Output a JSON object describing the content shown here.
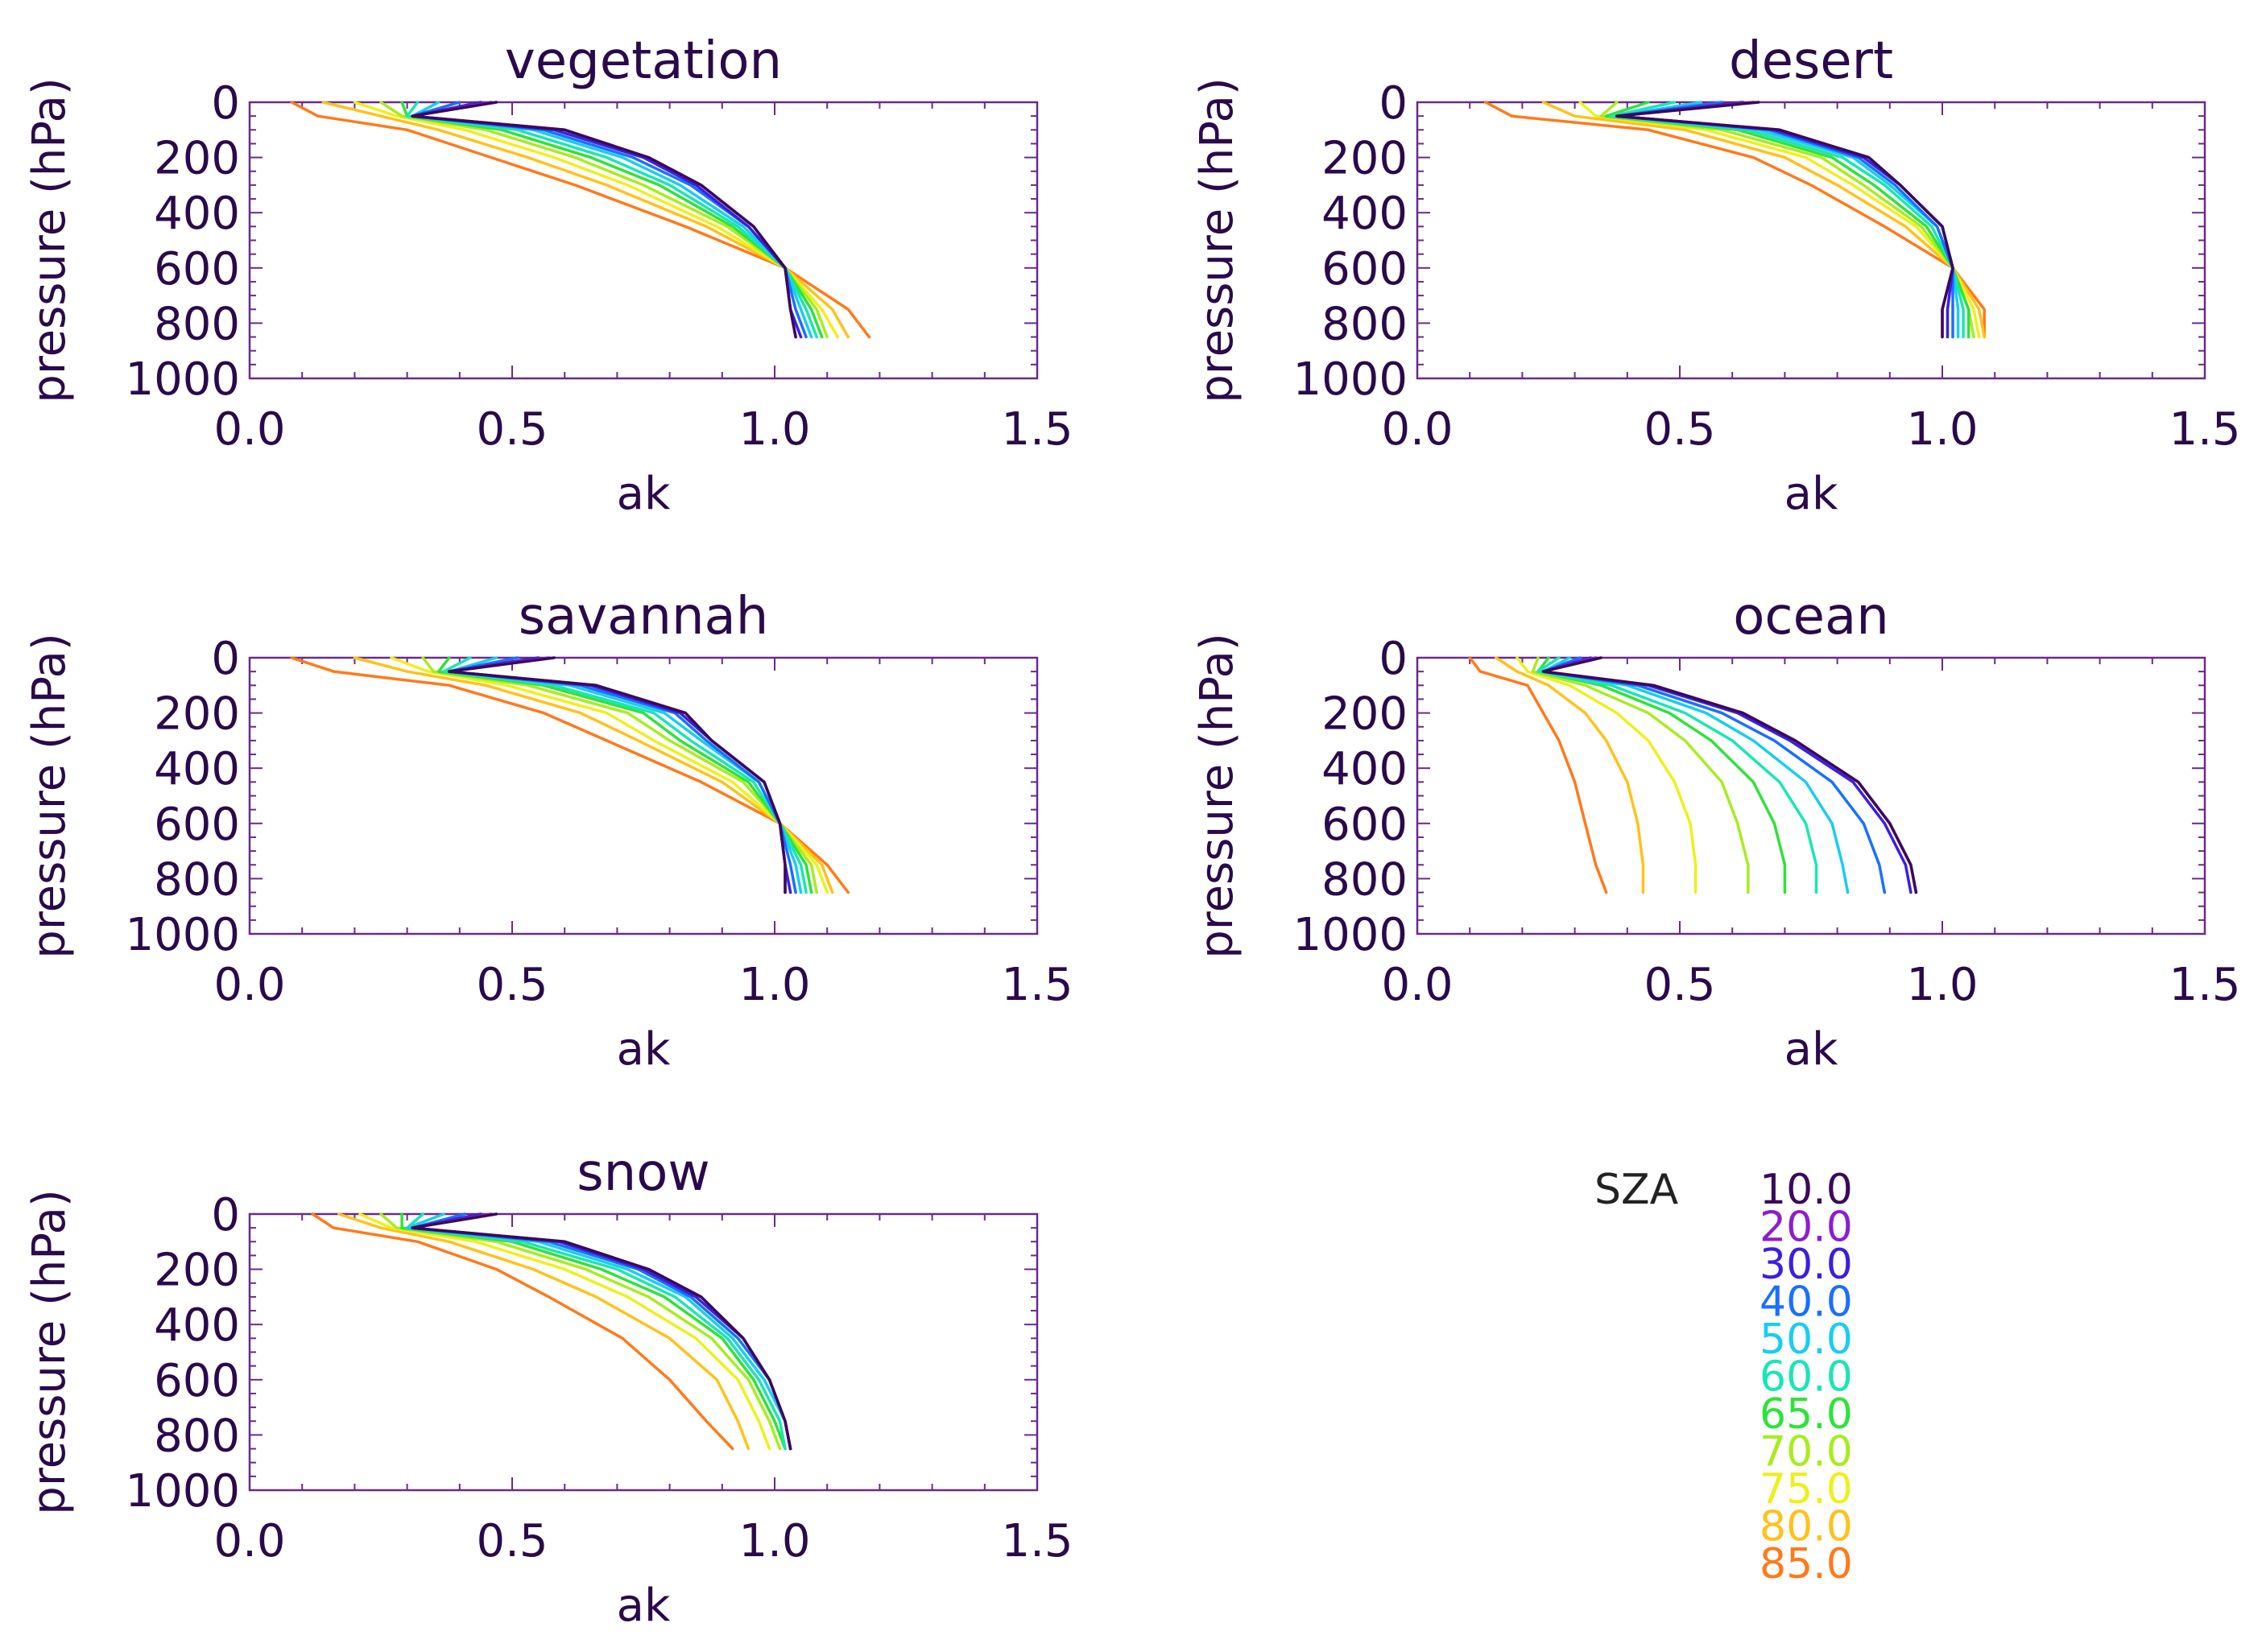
{
  "chart_data": [
    {
      "type": "line",
      "title": "vegetation",
      "xlabel": "ak",
      "ylabel": "pressure (hPa)",
      "xlim": [
        0.0,
        1.5
      ],
      "ylim": [
        1000,
        0
      ],
      "xticks": [
        "0.0",
        "0.5",
        "1.0",
        "1.5"
      ],
      "yticks": [
        "0",
        "200",
        "400",
        "600",
        "800",
        "1000"
      ],
      "pressure_levels": [
        0,
        50,
        100,
        200,
        300,
        450,
        600,
        750,
        850
      ],
      "series": [
        {
          "name": "10.0",
          "x": [
            0.47,
            0.31,
            0.6,
            0.76,
            0.86,
            0.96,
            1.02,
            1.03,
            1.04
          ]
        },
        {
          "name": "20.0",
          "x": [
            0.46,
            0.31,
            0.6,
            0.76,
            0.86,
            0.96,
            1.02,
            1.03,
            1.04
          ]
        },
        {
          "name": "30.0",
          "x": [
            0.44,
            0.31,
            0.58,
            0.75,
            0.85,
            0.95,
            1.02,
            1.03,
            1.05
          ]
        },
        {
          "name": "40.0",
          "x": [
            0.4,
            0.31,
            0.56,
            0.73,
            0.84,
            0.95,
            1.02,
            1.04,
            1.06
          ]
        },
        {
          "name": "50.0",
          "x": [
            0.36,
            0.31,
            0.54,
            0.71,
            0.82,
            0.94,
            1.02,
            1.05,
            1.07
          ]
        },
        {
          "name": "60.0",
          "x": [
            0.32,
            0.3,
            0.51,
            0.68,
            0.8,
            0.93,
            1.02,
            1.06,
            1.08
          ]
        },
        {
          "name": "65.0",
          "x": [
            0.29,
            0.3,
            0.48,
            0.65,
            0.78,
            0.92,
            1.02,
            1.07,
            1.09
          ]
        },
        {
          "name": "70.0",
          "x": [
            0.25,
            0.29,
            0.45,
            0.62,
            0.75,
            0.91,
            1.02,
            1.08,
            1.1
          ]
        },
        {
          "name": "75.0",
          "x": [
            0.2,
            0.28,
            0.41,
            0.58,
            0.72,
            0.89,
            1.02,
            1.09,
            1.12
          ]
        },
        {
          "name": "80.0",
          "x": [
            0.14,
            0.25,
            0.36,
            0.53,
            0.68,
            0.87,
            1.02,
            1.11,
            1.14
          ]
        },
        {
          "name": "85.0",
          "x": [
            0.08,
            0.13,
            0.3,
            0.46,
            0.62,
            0.83,
            1.02,
            1.14,
            1.18
          ]
        }
      ]
    },
    {
      "type": "line",
      "title": "desert",
      "xlabel": "ak",
      "ylabel": "pressure (hPa)",
      "xlim": [
        0.0,
        1.5
      ],
      "ylim": [
        1000,
        0
      ],
      "xticks": [
        "0.0",
        "0.5",
        "1.0",
        "1.5"
      ],
      "yticks": [
        "0",
        "200",
        "400",
        "600",
        "800",
        "1000"
      ],
      "pressure_levels": [
        0,
        50,
        100,
        200,
        300,
        450,
        600,
        750,
        850
      ],
      "series": [
        {
          "name": "10.0",
          "x": [
            0.65,
            0.38,
            0.69,
            0.86,
            0.92,
            1.0,
            1.02,
            1.0,
            1.0
          ]
        },
        {
          "name": "20.0",
          "x": [
            0.64,
            0.38,
            0.69,
            0.86,
            0.92,
            1.0,
            1.02,
            1.0,
            1.0
          ]
        },
        {
          "name": "30.0",
          "x": [
            0.62,
            0.38,
            0.68,
            0.85,
            0.92,
            1.0,
            1.02,
            1.01,
            1.01
          ]
        },
        {
          "name": "40.0",
          "x": [
            0.58,
            0.38,
            0.67,
            0.84,
            0.91,
            0.99,
            1.02,
            1.02,
            1.02
          ]
        },
        {
          "name": "50.0",
          "x": [
            0.54,
            0.38,
            0.65,
            0.83,
            0.9,
            0.99,
            1.02,
            1.03,
            1.03
          ]
        },
        {
          "name": "60.0",
          "x": [
            0.49,
            0.37,
            0.63,
            0.81,
            0.89,
            0.98,
            1.02,
            1.04,
            1.04
          ]
        },
        {
          "name": "65.0",
          "x": [
            0.44,
            0.36,
            0.61,
            0.79,
            0.87,
            0.97,
            1.02,
            1.05,
            1.05
          ]
        },
        {
          "name": "70.0",
          "x": [
            0.38,
            0.35,
            0.58,
            0.77,
            0.85,
            0.96,
            1.02,
            1.05,
            1.06
          ]
        },
        {
          "name": "75.0",
          "x": [
            0.31,
            0.34,
            0.55,
            0.74,
            0.83,
            0.95,
            1.02,
            1.06,
            1.07
          ]
        },
        {
          "name": "80.0",
          "x": [
            0.24,
            0.3,
            0.51,
            0.7,
            0.8,
            0.93,
            1.02,
            1.07,
            1.08
          ]
        },
        {
          "name": "85.0",
          "x": [
            0.13,
            0.18,
            0.44,
            0.64,
            0.75,
            0.89,
            1.02,
            1.08,
            1.08
          ]
        }
      ]
    },
    {
      "type": "line",
      "title": "savannah",
      "xlabel": "ak",
      "ylabel": "pressure (hPa)",
      "xlim": [
        0.0,
        1.5
      ],
      "ylim": [
        1000,
        0
      ],
      "xticks": [
        "0.0",
        "0.5",
        "1.0",
        "1.5"
      ],
      "yticks": [
        "0",
        "200",
        "400",
        "600",
        "800",
        "1000"
      ],
      "pressure_levels": [
        0,
        50,
        100,
        200,
        300,
        450,
        600,
        750,
        850
      ],
      "series": [
        {
          "name": "10.0",
          "x": [
            0.58,
            0.38,
            0.66,
            0.83,
            0.88,
            0.98,
            1.01,
            1.02,
            1.02
          ]
        },
        {
          "name": "20.0",
          "x": [
            0.57,
            0.38,
            0.66,
            0.83,
            0.88,
            0.98,
            1.01,
            1.02,
            1.02
          ]
        },
        {
          "name": "30.0",
          "x": [
            0.55,
            0.38,
            0.65,
            0.82,
            0.88,
            0.98,
            1.01,
            1.02,
            1.03
          ]
        },
        {
          "name": "40.0",
          "x": [
            0.51,
            0.38,
            0.63,
            0.81,
            0.87,
            0.97,
            1.01,
            1.03,
            1.04
          ]
        },
        {
          "name": "50.0",
          "x": [
            0.47,
            0.38,
            0.61,
            0.79,
            0.86,
            0.97,
            1.01,
            1.04,
            1.05
          ]
        },
        {
          "name": "60.0",
          "x": [
            0.42,
            0.37,
            0.58,
            0.77,
            0.84,
            0.96,
            1.01,
            1.05,
            1.06
          ]
        },
        {
          "name": "65.0",
          "x": [
            0.38,
            0.36,
            0.56,
            0.75,
            0.82,
            0.95,
            1.01,
            1.06,
            1.07
          ]
        },
        {
          "name": "70.0",
          "x": [
            0.33,
            0.35,
            0.53,
            0.72,
            0.8,
            0.94,
            1.01,
            1.07,
            1.08
          ]
        },
        {
          "name": "75.0",
          "x": [
            0.27,
            0.34,
            0.49,
            0.68,
            0.77,
            0.92,
            1.01,
            1.08,
            1.1
          ]
        },
        {
          "name": "80.0",
          "x": [
            0.2,
            0.3,
            0.45,
            0.63,
            0.74,
            0.9,
            1.01,
            1.09,
            1.11
          ]
        },
        {
          "name": "85.0",
          "x": [
            0.08,
            0.16,
            0.38,
            0.56,
            0.68,
            0.86,
            1.01,
            1.1,
            1.14
          ]
        }
      ]
    },
    {
      "type": "line",
      "title": "ocean",
      "xlabel": "ak",
      "ylabel": "pressure (hPa)",
      "xlim": [
        0.0,
        1.5
      ],
      "ylim": [
        1000,
        0
      ],
      "xticks": [
        "0.0",
        "0.5",
        "1.0",
        "1.5"
      ],
      "yticks": [
        "0",
        "200",
        "400",
        "600",
        "800",
        "1000"
      ],
      "pressure_levels": [
        0,
        50,
        100,
        200,
        300,
        450,
        600,
        750,
        850
      ],
      "series": [
        {
          "name": "10.0",
          "x": [
            0.35,
            0.24,
            0.45,
            0.62,
            0.72,
            0.84,
            0.9,
            0.94,
            0.95
          ]
        },
        {
          "name": "20.0",
          "x": [
            0.34,
            0.24,
            0.45,
            0.62,
            0.72,
            0.84,
            0.9,
            0.94,
            0.95
          ]
        },
        {
          "name": "30.0",
          "x": [
            0.33,
            0.24,
            0.44,
            0.61,
            0.71,
            0.83,
            0.89,
            0.93,
            0.94
          ]
        },
        {
          "name": "40.0",
          "x": [
            0.31,
            0.24,
            0.42,
            0.58,
            0.68,
            0.79,
            0.85,
            0.88,
            0.89
          ]
        },
        {
          "name": "50.0",
          "x": [
            0.29,
            0.24,
            0.4,
            0.55,
            0.64,
            0.74,
            0.79,
            0.81,
            0.82
          ]
        },
        {
          "name": "60.0",
          "x": [
            0.27,
            0.23,
            0.37,
            0.51,
            0.6,
            0.69,
            0.74,
            0.76,
            0.76
          ]
        },
        {
          "name": "65.0",
          "x": [
            0.25,
            0.23,
            0.35,
            0.48,
            0.56,
            0.64,
            0.68,
            0.7,
            0.7
          ]
        },
        {
          "name": "70.0",
          "x": [
            0.23,
            0.22,
            0.32,
            0.44,
            0.51,
            0.58,
            0.61,
            0.63,
            0.63
          ]
        },
        {
          "name": "75.0",
          "x": [
            0.19,
            0.21,
            0.29,
            0.38,
            0.44,
            0.49,
            0.52,
            0.53,
            0.53
          ]
        },
        {
          "name": "80.0",
          "x": [
            0.15,
            0.19,
            0.25,
            0.32,
            0.36,
            0.4,
            0.42,
            0.43,
            0.43
          ]
        },
        {
          "name": "85.0",
          "x": [
            0.1,
            0.12,
            0.21,
            0.24,
            0.27,
            0.3,
            0.32,
            0.34,
            0.36
          ]
        }
      ]
    },
    {
      "type": "line",
      "title": "snow",
      "xlabel": "ak",
      "ylabel": "pressure (hPa)",
      "xlim": [
        0.0,
        1.5
      ],
      "ylim": [
        1000,
        0
      ],
      "xticks": [
        "0.0",
        "0.5",
        "1.0",
        "1.5"
      ],
      "yticks": [
        "0",
        "200",
        "400",
        "600",
        "800",
        "1000"
      ],
      "pressure_levels": [
        0,
        50,
        100,
        200,
        300,
        450,
        600,
        750,
        850
      ],
      "series": [
        {
          "name": "10.0",
          "x": [
            0.47,
            0.31,
            0.6,
            0.76,
            0.86,
            0.94,
            0.99,
            1.02,
            1.03
          ]
        },
        {
          "name": "20.0",
          "x": [
            0.46,
            0.31,
            0.6,
            0.76,
            0.86,
            0.94,
            0.99,
            1.02,
            1.03
          ]
        },
        {
          "name": "30.0",
          "x": [
            0.44,
            0.31,
            0.59,
            0.75,
            0.85,
            0.94,
            0.99,
            1.02,
            1.03
          ]
        },
        {
          "name": "40.0",
          "x": [
            0.41,
            0.31,
            0.57,
            0.74,
            0.84,
            0.93,
            0.99,
            1.02,
            1.03
          ]
        },
        {
          "name": "50.0",
          "x": [
            0.37,
            0.3,
            0.55,
            0.72,
            0.83,
            0.92,
            0.98,
            1.02,
            1.03
          ]
        },
        {
          "name": "60.0",
          "x": [
            0.33,
            0.3,
            0.52,
            0.7,
            0.81,
            0.91,
            0.97,
            1.01,
            1.02
          ]
        },
        {
          "name": "65.0",
          "x": [
            0.29,
            0.29,
            0.5,
            0.67,
            0.79,
            0.9,
            0.96,
            1.0,
            1.02
          ]
        },
        {
          "name": "70.0",
          "x": [
            0.25,
            0.28,
            0.47,
            0.64,
            0.76,
            0.88,
            0.95,
            0.99,
            1.01
          ]
        },
        {
          "name": "75.0",
          "x": [
            0.21,
            0.27,
            0.43,
            0.6,
            0.72,
            0.85,
            0.93,
            0.97,
            0.99
          ]
        },
        {
          "name": "80.0",
          "x": [
            0.17,
            0.25,
            0.38,
            0.54,
            0.66,
            0.8,
            0.89,
            0.93,
            0.95
          ]
        },
        {
          "name": "85.0",
          "x": [
            0.12,
            0.16,
            0.32,
            0.47,
            0.57,
            0.71,
            0.8,
            0.87,
            0.92
          ]
        }
      ]
    }
  ],
  "legend": {
    "title": "SZA",
    "items": [
      {
        "label": "10.0",
        "color": "#3a0a5a"
      },
      {
        "label": "20.0",
        "color": "#8a1fcf"
      },
      {
        "label": "30.0",
        "color": "#3a1fe0"
      },
      {
        "label": "40.0",
        "color": "#1a6fff"
      },
      {
        "label": "50.0",
        "color": "#19cdf0"
      },
      {
        "label": "60.0",
        "color": "#19e6b4"
      },
      {
        "label": "65.0",
        "color": "#2fe23a"
      },
      {
        "label": "70.0",
        "color": "#a8ec1f"
      },
      {
        "label": "75.0",
        "color": "#eef01c"
      },
      {
        "label": "80.0",
        "color": "#ffc21a"
      },
      {
        "label": "85.0",
        "color": "#ff7a1a"
      }
    ]
  }
}
